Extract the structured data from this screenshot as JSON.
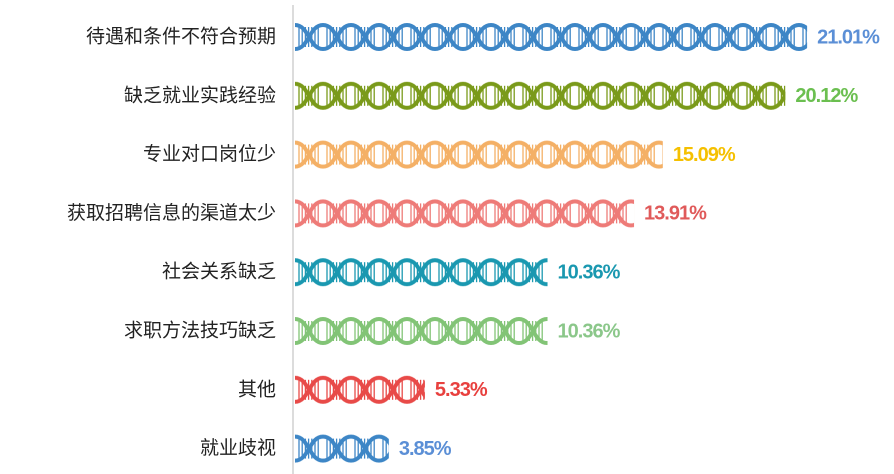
{
  "chart_data": {
    "type": "bar",
    "orientation": "horizontal",
    "categories": [
      "待遇和条件不符合预期",
      "缺乏就业实践经验",
      "专业对口岗位少",
      "获取招聘信息的渠道太少",
      "社会关系缺乏",
      "求职方法技巧缺乏",
      "其他",
      "就业歧视"
    ],
    "values": [
      21.01,
      20.12,
      15.09,
      13.91,
      10.36,
      10.36,
      5.33,
      3.85
    ],
    "value_labels": [
      "21.01%",
      "20.12%",
      "15.09%",
      "13.91%",
      "10.36%",
      "10.36%",
      "5.33%",
      "3.85%"
    ],
    "colors": [
      "#3d86c6",
      "#7a9a1a",
      "#f4b066",
      "#ee7b78",
      "#1a98b0",
      "#82c476",
      "#e84a48",
      "#3d86c6"
    ],
    "label_colors": [
      "#5b8fd6",
      "#6bbf50",
      "#f5c000",
      "#e05a5a",
      "#1a98b0",
      "#8bc78a",
      "#e8403e",
      "#5b8fd6"
    ],
    "xlim": [
      0,
      24
    ]
  }
}
